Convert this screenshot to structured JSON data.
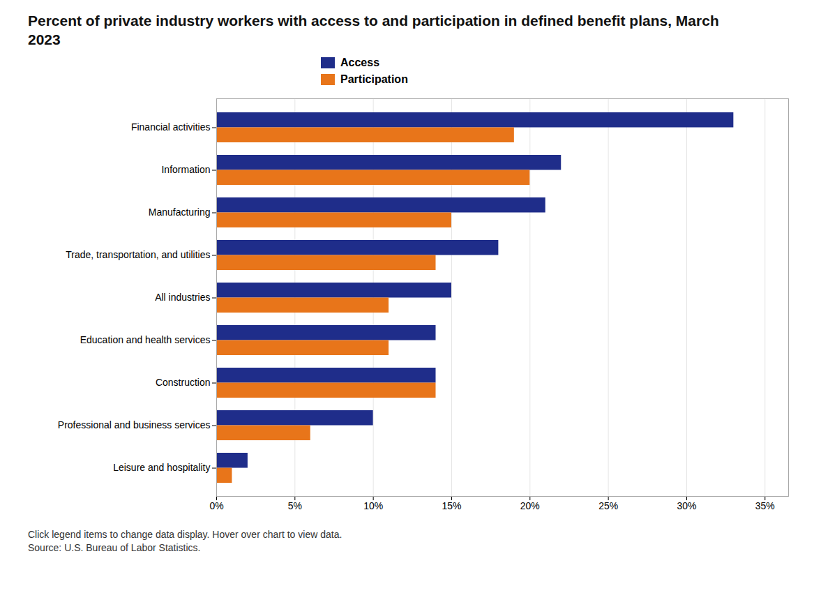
{
  "chart_data": {
    "type": "bar",
    "orientation": "horizontal",
    "title": "Percent of private industry workers with access to and participation in defined benefit plans, March 2023",
    "categories": [
      "Financial activities",
      "Information",
      "Manufacturing",
      "Trade, transportation, and utilities",
      "All industries",
      "Education and health services",
      "Construction",
      "Professional and business services",
      "Leisure and hospitality"
    ],
    "series": [
      {
        "name": "Access",
        "color": "#1f2d8a",
        "values": [
          33,
          22,
          21,
          18,
          15,
          14,
          14,
          10,
          2
        ]
      },
      {
        "name": "Participation",
        "color": "#e8751a",
        "values": [
          19,
          20,
          15,
          14,
          11,
          11,
          14,
          6,
          1
        ]
      }
    ],
    "xlim": [
      0,
      36.5
    ],
    "xticks": [
      {
        "value": 0,
        "label": "0%"
      },
      {
        "value": 5,
        "label": "5%"
      },
      {
        "value": 10,
        "label": "10%"
      },
      {
        "value": 15,
        "label": "15%"
      },
      {
        "value": 20,
        "label": "20%"
      },
      {
        "value": 25,
        "label": "25%"
      },
      {
        "value": 30,
        "label": "30%"
      },
      {
        "value": 35,
        "label": "35%"
      }
    ],
    "grid": true,
    "legend": "top",
    "annotations": [
      "Click legend items to change data display. Hover over chart to view data.",
      "Source: U.S. Bureau of Labor Statistics."
    ]
  }
}
